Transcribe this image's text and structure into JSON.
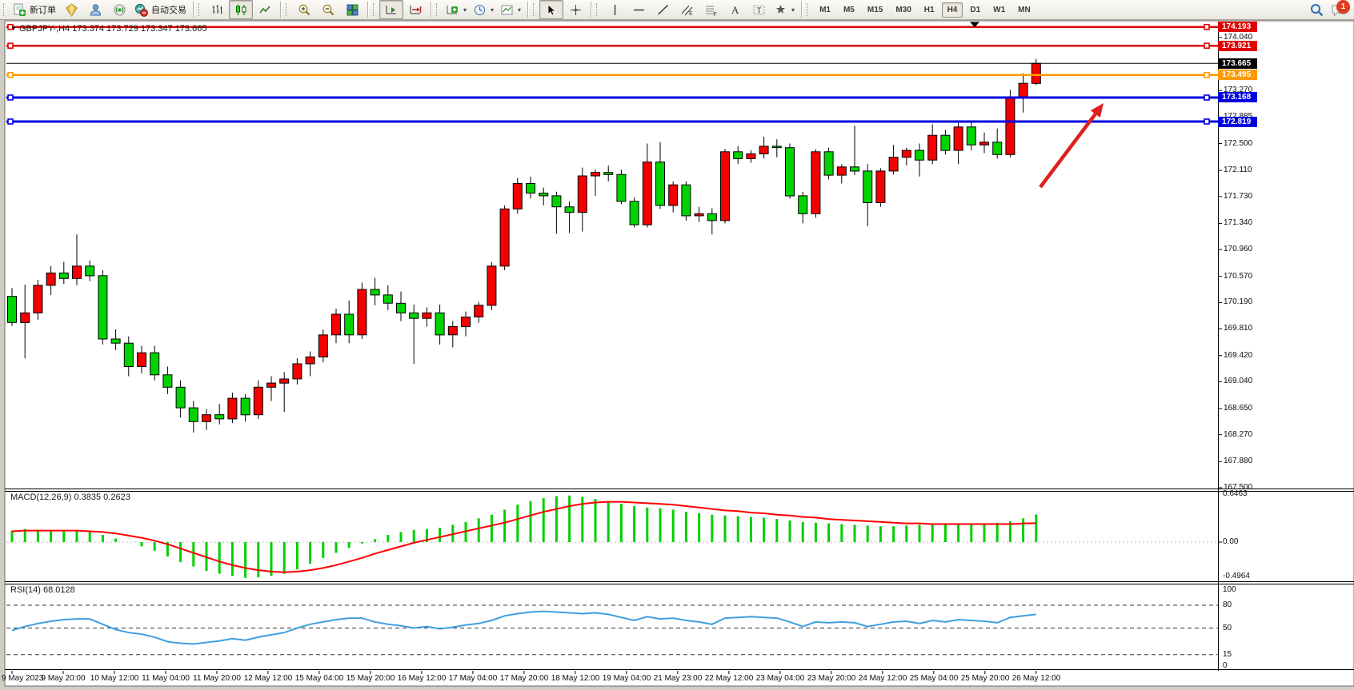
{
  "toolbar": {
    "order_buttons": [
      {
        "name": "new-order",
        "icon": "doc-plus",
        "label": "新订单"
      },
      {
        "name": "metaquotes",
        "icon": "gem",
        "label": ""
      },
      {
        "name": "community",
        "icon": "person",
        "label": ""
      },
      {
        "name": "signals",
        "icon": "signal",
        "label": ""
      },
      {
        "name": "autotrading",
        "icon": "autotrade",
        "label": "自动交易"
      }
    ],
    "chart_type_buttons": [
      {
        "name": "bar-chart",
        "icon": "bars",
        "pressed": false
      },
      {
        "name": "candlestick-chart",
        "icon": "candles",
        "pressed": true
      },
      {
        "name": "line-chart",
        "icon": "linechart",
        "pressed": false
      }
    ],
    "zoom_buttons": [
      {
        "name": "zoom-in",
        "icon": "zoomin"
      },
      {
        "name": "zoom-out",
        "icon": "zoomout"
      },
      {
        "name": "tile-windows",
        "icon": "tiles"
      }
    ],
    "scroll_buttons": [
      {
        "name": "auto-scroll",
        "icon": "autoscroll",
        "pressed": true
      },
      {
        "name": "chart-shift",
        "icon": "chartshift",
        "pressed": false
      }
    ],
    "insert_buttons": [
      {
        "name": "indicators",
        "icon": "indplus",
        "caret": true
      },
      {
        "name": "periods",
        "icon": "clock",
        "caret": true
      },
      {
        "name": "templates",
        "icon": "template",
        "caret": true
      }
    ],
    "cursor_buttons": [
      {
        "name": "cursor",
        "icon": "cursor",
        "pressed": true
      },
      {
        "name": "crosshair",
        "icon": "crosshair",
        "pressed": false
      }
    ],
    "drawing_buttons": [
      {
        "name": "vertical-line",
        "icon": "vline"
      },
      {
        "name": "horizontal-line",
        "icon": "hline"
      },
      {
        "name": "trendline",
        "icon": "tline"
      },
      {
        "name": "equidistant-channel",
        "icon": "channel"
      },
      {
        "name": "fibonacci",
        "icon": "fibo"
      },
      {
        "name": "text",
        "icon": "textA"
      },
      {
        "name": "text-label",
        "icon": "labelT"
      },
      {
        "name": "arrows",
        "icon": "arrows",
        "caret": true
      }
    ],
    "timeframes": [
      "M1",
      "M5",
      "M15",
      "M30",
      "H1",
      "H4",
      "D1",
      "W1",
      "MN"
    ],
    "active_timeframe": "H4",
    "notification_count": "1"
  },
  "chart": {
    "title": {
      "symbol": "GBPJPY-,H4",
      "ohlc": "173.374 173.729 173.347 173.665",
      "marker": "▼"
    },
    "price_axis_ticks": [
      "174.040",
      "173.655",
      "173.270",
      "172.885",
      "172.500",
      "172.110",
      "171.730",
      "171.340",
      "170.960",
      "170.570",
      "170.190",
      "169.810",
      "169.420",
      "169.040",
      "168.650",
      "168.270",
      "167.880",
      "167.500"
    ],
    "hlines": [
      {
        "label": "174.193",
        "price": 174.193,
        "color": "#e00000",
        "width": 2.5,
        "handles": true
      },
      {
        "label": "173.921",
        "price": 173.921,
        "color": "#e00000",
        "width": 2.5,
        "handles": true
      },
      {
        "label": "173.665",
        "price": 173.665,
        "color": "#000000",
        "width": 1,
        "handles": false,
        "current_price": true
      },
      {
        "label": "173.495",
        "price": 173.495,
        "color": "#ff9900",
        "width": 2.5,
        "handles": true
      },
      {
        "label": "173.168",
        "price": 173.168,
        "color": "#0000dd",
        "width": 3,
        "handles": true
      },
      {
        "label": "172.819",
        "price": 172.819,
        "color": "#0000dd",
        "width": 3,
        "handles": true
      }
    ],
    "arrow_annotation": {
      "from": [
        1300,
        234
      ],
      "to": [
        1379,
        129
      ],
      "color": "#df1f1f"
    }
  },
  "indicators": {
    "macd": {
      "label": "MACD(12,26,9) 0.3835 0.2623",
      "axis_labels": [
        "0.6463",
        "0.00",
        "-0.4964"
      ]
    },
    "rsi": {
      "label": "RSI(14) 68.0128",
      "axis_labels": [
        "100",
        "80",
        "50",
        "15",
        "0"
      ]
    }
  },
  "chart_data": {
    "type": "candlestick",
    "title": "GBPJPY-,H4",
    "symbol": "GBPJPY-",
    "timeframe": "H4",
    "last_bar": {
      "open": 173.374,
      "high": 173.729,
      "low": 173.347,
      "close": 173.665
    },
    "up_color": "#f40000",
    "down_color": "#00d300",
    "ylim": [
      167.5,
      174.27
    ],
    "x_labels": [
      "9 May 2023",
      "9 May 20:00",
      "10 May 12:00",
      "11 May 04:00",
      "11 May 20:00",
      "12 May 12:00",
      "15 May 04:00",
      "15 May 20:00",
      "16 May 12:00",
      "17 May 04:00",
      "17 May 20:00",
      "18 May 12:00",
      "19 May 04:00",
      "21 May 23:00",
      "22 May 12:00",
      "23 May 04:00",
      "23 May 20:00",
      "24 May 12:00",
      "25 May 04:00",
      "25 May 20:00",
      "26 May 12:00"
    ],
    "candles_ohlc": [
      [
        170.28,
        170.4,
        169.85,
        169.9
      ],
      [
        169.9,
        170.45,
        169.38,
        170.04
      ],
      [
        170.04,
        170.52,
        169.94,
        170.44
      ],
      [
        170.44,
        170.72,
        170.3,
        170.62
      ],
      [
        170.62,
        170.78,
        170.46,
        170.54
      ],
      [
        170.54,
        171.18,
        170.44,
        170.72
      ],
      [
        170.72,
        170.8,
        170.5,
        170.58
      ],
      [
        170.58,
        170.66,
        169.58,
        169.66
      ],
      [
        169.66,
        169.8,
        169.5,
        169.6
      ],
      [
        169.6,
        169.7,
        169.12,
        169.26
      ],
      [
        169.26,
        169.56,
        169.16,
        169.46
      ],
      [
        169.46,
        169.56,
        169.06,
        169.14
      ],
      [
        169.14,
        169.26,
        168.86,
        168.96
      ],
      [
        168.96,
        169.06,
        168.52,
        168.66
      ],
      [
        168.66,
        168.76,
        168.3,
        168.46
      ],
      [
        168.46,
        168.64,
        168.34,
        168.56
      ],
      [
        168.56,
        168.72,
        168.42,
        168.5
      ],
      [
        168.5,
        168.88,
        168.44,
        168.8
      ],
      [
        168.8,
        168.86,
        168.46,
        168.56
      ],
      [
        168.56,
        169.06,
        168.5,
        168.96
      ],
      [
        168.96,
        169.12,
        168.76,
        169.02
      ],
      [
        169.02,
        169.18,
        168.6,
        169.08
      ],
      [
        169.08,
        169.38,
        169.0,
        169.3
      ],
      [
        169.3,
        169.48,
        169.12,
        169.4
      ],
      [
        169.4,
        169.8,
        169.32,
        169.72
      ],
      [
        169.72,
        170.1,
        169.6,
        170.02
      ],
      [
        170.02,
        170.22,
        169.6,
        169.72
      ],
      [
        169.72,
        170.48,
        169.66,
        170.38
      ],
      [
        170.38,
        170.55,
        170.15,
        170.3
      ],
      [
        170.3,
        170.44,
        170.08,
        170.18
      ],
      [
        170.18,
        170.35,
        169.92,
        170.04
      ],
      [
        170.04,
        170.16,
        169.3,
        169.96
      ],
      [
        169.96,
        170.12,
        169.84,
        170.04
      ],
      [
        170.04,
        170.16,
        169.58,
        169.72
      ],
      [
        169.72,
        169.92,
        169.54,
        169.84
      ],
      [
        169.84,
        170.06,
        169.7,
        169.98
      ],
      [
        169.98,
        170.2,
        169.9,
        170.15
      ],
      [
        170.15,
        170.78,
        170.08,
        170.72
      ],
      [
        170.72,
        171.6,
        170.66,
        171.55
      ],
      [
        171.55,
        172.0,
        171.48,
        171.92
      ],
      [
        171.92,
        172.02,
        171.7,
        171.78
      ],
      [
        171.78,
        171.86,
        171.6,
        171.74
      ],
      [
        171.74,
        171.8,
        171.19,
        171.58
      ],
      [
        171.58,
        171.66,
        171.2,
        171.5
      ],
      [
        171.5,
        172.15,
        171.22,
        172.03
      ],
      [
        172.03,
        172.12,
        171.74,
        172.08
      ],
      [
        172.08,
        172.18,
        171.95,
        172.05
      ],
      [
        172.05,
        172.12,
        171.62,
        171.66
      ],
      [
        171.66,
        171.72,
        171.28,
        171.32
      ],
      [
        171.32,
        172.5,
        171.28,
        172.23
      ],
      [
        172.23,
        172.52,
        171.55,
        171.6
      ],
      [
        171.6,
        171.95,
        171.5,
        171.9
      ],
      [
        171.9,
        171.95,
        171.38,
        171.45
      ],
      [
        171.45,
        171.58,
        171.36,
        171.48
      ],
      [
        171.48,
        171.56,
        171.18,
        171.38
      ],
      [
        171.38,
        172.42,
        171.34,
        172.38
      ],
      [
        172.38,
        172.46,
        172.2,
        172.28
      ],
      [
        172.28,
        172.4,
        172.22,
        172.35
      ],
      [
        172.35,
        172.6,
        172.28,
        172.46
      ],
      [
        172.46,
        172.56,
        172.3,
        172.44
      ],
      [
        172.44,
        172.5,
        171.7,
        171.74
      ],
      [
        171.74,
        171.8,
        171.34,
        171.48
      ],
      [
        171.48,
        172.42,
        171.42,
        172.38
      ],
      [
        172.38,
        172.44,
        171.98,
        172.04
      ],
      [
        172.04,
        172.2,
        171.92,
        172.16
      ],
      [
        172.16,
        172.76,
        172.04,
        172.1
      ],
      [
        172.1,
        172.2,
        171.3,
        171.64
      ],
      [
        171.64,
        172.14,
        171.58,
        172.1
      ],
      [
        172.1,
        172.48,
        172.05,
        172.3
      ],
      [
        172.3,
        172.44,
        172.18,
        172.4
      ],
      [
        172.4,
        172.5,
        172.02,
        172.26
      ],
      [
        172.26,
        172.78,
        172.2,
        172.62
      ],
      [
        172.62,
        172.7,
        172.34,
        172.4
      ],
      [
        172.4,
        172.8,
        172.2,
        172.74
      ],
      [
        172.74,
        172.82,
        172.4,
        172.48
      ],
      [
        172.48,
        172.66,
        172.36,
        172.52
      ],
      [
        172.52,
        172.72,
        172.28,
        172.34
      ],
      [
        172.34,
        173.28,
        172.3,
        173.17
      ],
      [
        173.17,
        173.52,
        172.95,
        173.374
      ],
      [
        173.374,
        173.729,
        173.347,
        173.665
      ]
    ],
    "macd": {
      "params": "12,26,9",
      "current_macd": 0.3835,
      "current_signal": 0.2623,
      "range": [
        -0.4964,
        0.6463
      ],
      "histogram": [
        0.16,
        0.18,
        0.17,
        0.16,
        0.15,
        0.16,
        0.14,
        0.1,
        0.05,
        0.0,
        -0.06,
        -0.12,
        -0.2,
        -0.28,
        -0.34,
        -0.4,
        -0.44,
        -0.47,
        -0.4964,
        -0.49,
        -0.47,
        -0.44,
        -0.38,
        -0.3,
        -0.22,
        -0.15,
        -0.08,
        -0.02,
        0.04,
        0.1,
        0.14,
        0.17,
        0.18,
        0.2,
        0.24,
        0.28,
        0.33,
        0.38,
        0.45,
        0.52,
        0.57,
        0.61,
        0.64,
        0.6463,
        0.63,
        0.6,
        0.57,
        0.53,
        0.5,
        0.48,
        0.47,
        0.45,
        0.42,
        0.4,
        0.38,
        0.37,
        0.36,
        0.35,
        0.34,
        0.32,
        0.3,
        0.28,
        0.27,
        0.26,
        0.25,
        0.24,
        0.23,
        0.22,
        0.22,
        0.23,
        0.24,
        0.24,
        0.25,
        0.25,
        0.26,
        0.26,
        0.27,
        0.29,
        0.33,
        0.3835
      ],
      "signal": [
        0.15,
        0.16,
        0.16,
        0.16,
        0.16,
        0.16,
        0.15,
        0.14,
        0.12,
        0.09,
        0.06,
        0.02,
        -0.03,
        -0.09,
        -0.15,
        -0.21,
        -0.27,
        -0.32,
        -0.36,
        -0.39,
        -0.41,
        -0.42,
        -0.41,
        -0.39,
        -0.36,
        -0.32,
        -0.27,
        -0.22,
        -0.16,
        -0.11,
        -0.06,
        -0.01,
        0.03,
        0.07,
        0.11,
        0.15,
        0.19,
        0.23,
        0.27,
        0.32,
        0.37,
        0.42,
        0.46,
        0.5,
        0.53,
        0.55,
        0.56,
        0.56,
        0.55,
        0.54,
        0.53,
        0.52,
        0.5,
        0.48,
        0.46,
        0.44,
        0.43,
        0.41,
        0.4,
        0.38,
        0.37,
        0.35,
        0.34,
        0.32,
        0.31,
        0.3,
        0.29,
        0.28,
        0.27,
        0.26,
        0.26,
        0.25,
        0.25,
        0.25,
        0.25,
        0.25,
        0.25,
        0.25,
        0.26,
        0.2623
      ]
    },
    "rsi": {
      "period": 14,
      "current": 68.0128,
      "levels": [
        80,
        50,
        15
      ],
      "range": [
        0,
        100
      ],
      "values": [
        47,
        52,
        56,
        59,
        61,
        62,
        62,
        55,
        48,
        44,
        42,
        38,
        32,
        30,
        29,
        31,
        33,
        36,
        34,
        38,
        41,
        44,
        50,
        55,
        58,
        61,
        63,
        63,
        58,
        55,
        53,
        50,
        52,
        49,
        51,
        54,
        56,
        60,
        66,
        69,
        71,
        72,
        71,
        70,
        69,
        70,
        68,
        64,
        60,
        65,
        62,
        63,
        60,
        58,
        55,
        63,
        64,
        65,
        64,
        63,
        58,
        52,
        58,
        57,
        58,
        57,
        52,
        55,
        58,
        59,
        56,
        60,
        58,
        61,
        60,
        59,
        57,
        64,
        66,
        68.0128
      ]
    }
  }
}
